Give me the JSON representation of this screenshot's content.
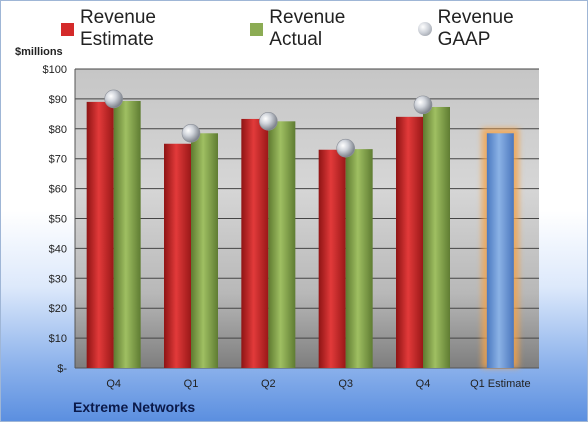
{
  "company": "Extreme Networks",
  "chart_data": {
    "type": "bar",
    "ylabel": "$millions",
    "ylim": [
      0,
      100
    ],
    "yticks": [
      0,
      10,
      20,
      30,
      40,
      50,
      60,
      70,
      80,
      90,
      100
    ],
    "ytick_labels": [
      "$-",
      "$10",
      "$20",
      "$30",
      "$40",
      "$50",
      "$60",
      "$70",
      "$80",
      "$90",
      "$100"
    ],
    "categories": [
      "Q4",
      "Q1",
      "Q2",
      "Q3",
      "Q4",
      "Q1 Estimate"
    ],
    "legend_position": "top",
    "grid": true,
    "series": [
      {
        "name": "Revenue Estimate",
        "kind": "bar",
        "color": "#d42a2a",
        "values": [
          89,
          75,
          83.3,
          73,
          84,
          null
        ]
      },
      {
        "name": "Revenue Actual",
        "kind": "bar",
        "color": "#8cac54",
        "values": [
          89.3,
          78.5,
          82.5,
          73.2,
          87.3,
          null
        ]
      },
      {
        "name": "Revenue GAAP",
        "kind": "marker",
        "color": "#b8bcc4",
        "values": [
          90,
          78.5,
          82.5,
          73.5,
          88,
          null
        ]
      },
      {
        "name": "Q1 Estimate",
        "kind": "bar",
        "color": "#6f9ad6",
        "highlight": "#f4a34a",
        "values": [
          null,
          null,
          null,
          null,
          null,
          78.5
        ]
      }
    ]
  }
}
